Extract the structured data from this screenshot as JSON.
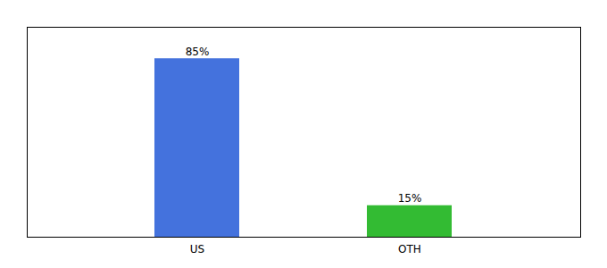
{
  "chart_data": {
    "type": "bar",
    "categories": [
      "US",
      "OTH"
    ],
    "values": [
      85,
      15
    ],
    "colors": [
      "#4472dd",
      "#33bb33"
    ],
    "ylim": [
      0,
      100
    ],
    "data_labels": true,
    "value_labels": [
      "85%",
      "15%"
    ],
    "tick_labels": "x",
    "grid": false
  }
}
